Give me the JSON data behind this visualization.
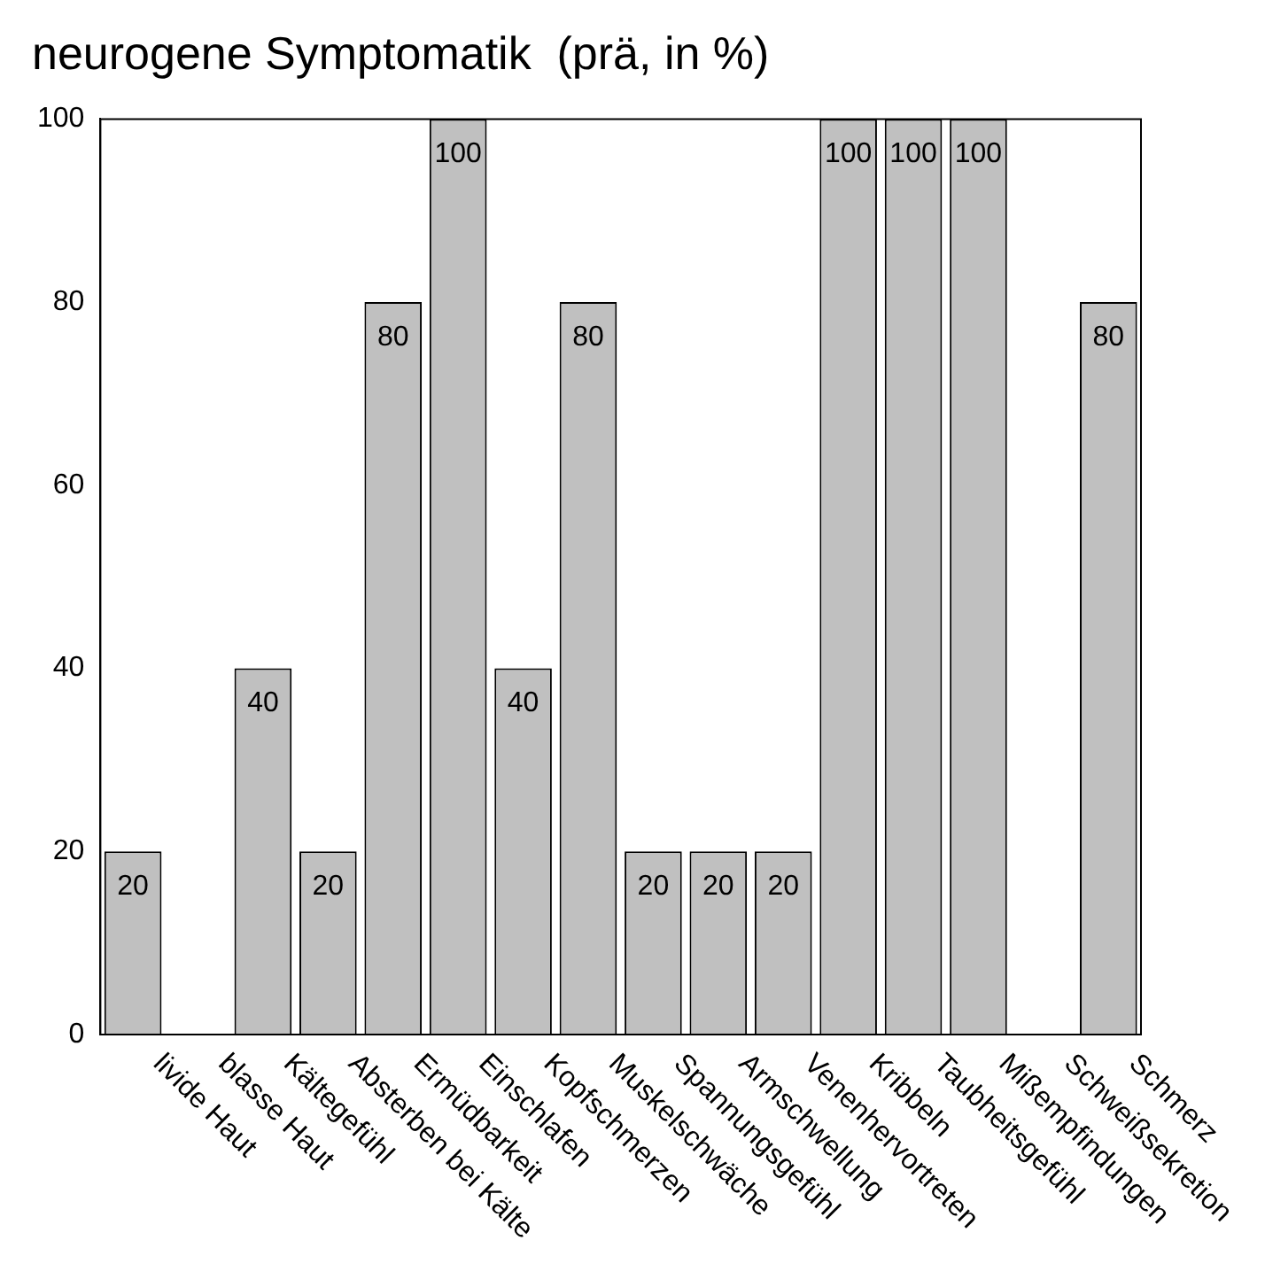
{
  "chart_data": {
    "type": "bar",
    "title": "neurogene Symptomatik  (prä, in %)",
    "categories": [
      "livide Haut",
      "blasse Haut",
      "Kältegefühl",
      "Absterben bei Kälte",
      "Ermüdbarkeit",
      "Einschlafen",
      "Kopfschmerzen",
      "Muskelschwäche",
      "Spannungsgefühl",
      "Armschwellung",
      "Venenhervortreten",
      "Kribbeln",
      "Taubheitsgefühl",
      "Mißempfindungen",
      "Schweißsekretion",
      "Schmerz"
    ],
    "values": [
      20,
      0,
      40,
      20,
      80,
      100,
      40,
      80,
      20,
      20,
      20,
      100,
      100,
      100,
      0,
      80
    ],
    "value_labels": [
      "20",
      null,
      "40",
      "20",
      "80",
      "100",
      "40",
      "80",
      "20",
      "20",
      "20",
      "100",
      "100",
      "100",
      null,
      "80"
    ],
    "color": "#c0c0c0",
    "ylim": [
      0,
      100
    ],
    "yticks": [
      0,
      20,
      40,
      60,
      80,
      100
    ],
    "grid": false,
    "legend": false
  }
}
